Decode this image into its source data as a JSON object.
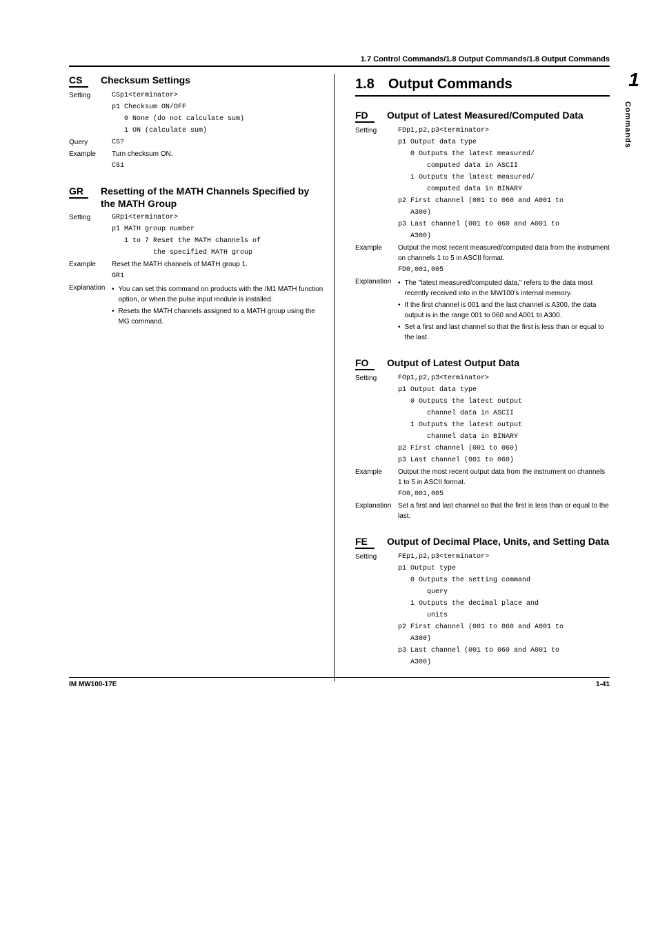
{
  "breadcrumb": "1.7  Control Commands/1.8  Output Commands/1.8  Output Commands",
  "sideTab": {
    "num": "1",
    "label": "Commands"
  },
  "footer": {
    "left": "IM MW100-17E",
    "right": "1-41"
  },
  "section": {
    "num": "1.8",
    "title": "Output Commands"
  },
  "cs": {
    "code": "CS",
    "title": "Checksum Settings",
    "settingLabel": "Setting",
    "syntax": "CSp1<terminator>",
    "p1": "p1  Checksum ON/OFF",
    "opt0": "0    None (do not calculate sum)",
    "opt1": "1    ON (calculate sum)",
    "queryLabel": "Query",
    "query": "CS?",
    "exampleLabel": "Example",
    "exampleText": "Turn checksum ON.",
    "exampleCode": "CS1"
  },
  "gr": {
    "code": "GR",
    "title": "Resetting of the MATH Channels Specified by the MATH Group",
    "settingLabel": "Setting",
    "syntax": "GRp1<terminator>",
    "p1": "p1  MATH group number",
    "opt": "1 to 7  Reset the MATH channels of",
    "opt2": "the specified MATH group",
    "exampleLabel": "Example",
    "exampleText": "Reset the MATH channels of MATH group 1.",
    "exampleCode": "GR1",
    "explLabel": "Explanation",
    "b1": "You can set this command on products with the /M1 MATH function option, or when the pulse input module is installed.",
    "b2": "Resets the MATH channels assigned to a MATH group using the MG command."
  },
  "fd": {
    "code": "FD",
    "title": "Output of Latest Measured/Computed Data",
    "settingLabel": "Setting",
    "syntax": "FDp1,p2,p3<terminator>",
    "p1": "p1  Output data type",
    "opt0a": "0    Outputs the latest measured/",
    "opt0b": "computed data in ASCII",
    "opt1a": "1    Outputs the latest measured/",
    "opt1b": "computed data in BINARY",
    "p2a": "p2  First channel (001 to 060 and A001 to",
    "p2b": "A300)",
    "p3a": "p3  Last channel  (001 to 060 and A001 to",
    "p3b": "A300)",
    "exampleLabel": "Example",
    "exampleText": "Output the most recent measured/computed data from the instrument on channels 1 to 5 in ASCII format.",
    "exampleCode": "FD0,001,005",
    "explLabel": "Explanation",
    "b1": "The \"latest measured/computed data,\" refers to the data most recently received into in the MW100's internal memory.",
    "b2": "If the first channel is 001 and the last channel is A300, the data output is in the range 001 to 060 and A001 to A300.",
    "b3": "Set a first and last channel so that the first is less than or equal to the last."
  },
  "fo": {
    "code": "FO",
    "title": "Output of Latest Output Data",
    "settingLabel": "Setting",
    "syntax": "FOp1,p2,p3<terminator>",
    "p1": "p1  Output data type",
    "opt0a": "0    Outputs the latest output",
    "opt0b": "channel data in ASCII",
    "opt1a": "1    Outputs the latest output",
    "opt1b": "channel data in BINARY",
    "p2": "p2  First channel (001 to 060)",
    "p3": "p3  Last channel (001 to 060)",
    "exampleLabel": "Example",
    "exampleText": "Output the most recent output data from the instrument on channels 1 to 5 in ASCII format.",
    "exampleCode": "FO0,001,005",
    "explLabel": "Explanation",
    "explText": "Set a first and last channel so that the first is less than or equal to the last."
  },
  "fe": {
    "code": "FE",
    "title": "Output of Decimal Place, Units, and Setting Data",
    "settingLabel": "Setting",
    "syntax": "FEp1,p2,p3<terminator>",
    "p1": "p1  Output type",
    "opt0a": "0    Outputs the setting command",
    "opt0b": "query",
    "opt1a": "1    Outputs the decimal place and",
    "opt1b": "units",
    "p2a": "p2  First channel (001 to 060 and A001 to",
    "p2b": "A300)",
    "p3a": "p3  Last channel  (001 to 060 and A001 to",
    "p3b": "A300)"
  }
}
